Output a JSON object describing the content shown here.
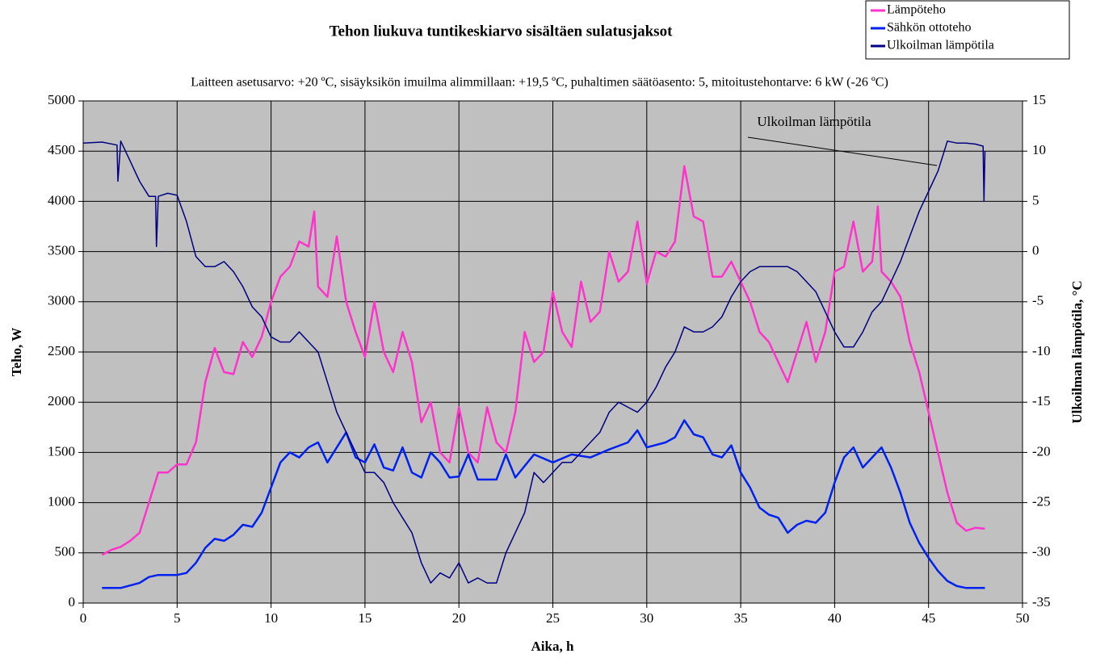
{
  "chart_data": {
    "type": "line",
    "title": "Tehon liukuva  tuntikeskiarvo  sisältäen sulatusjaksot",
    "subtitle": "Laitteen asetusarvo: +20 ºC, sisäyksikön imuilma  alimmillaan:  +19,5 ºC, puhaltimen säätöasento: 5, mitoitustehontarve:  6 kW (-26 ºC)",
    "x_label": "Aika, h",
    "y_label": "Teho, W",
    "y2_label": "Ulkoilman lämpötila, °C",
    "annotation": "Ulkoilman lämpötila",
    "xlim": [
      0,
      50
    ],
    "xticks": [
      0,
      5,
      10,
      15,
      20,
      25,
      30,
      35,
      40,
      45,
      50
    ],
    "ylim": [
      0,
      5000
    ],
    "yticks": [
      0,
      500,
      1000,
      1500,
      2000,
      2500,
      3000,
      3500,
      4000,
      4500,
      5000
    ],
    "y2lim": [
      -35,
      15
    ],
    "y2ticks": [
      -35,
      -30,
      -25,
      -20,
      -15,
      -10,
      -5,
      0,
      5,
      10,
      15
    ],
    "grid": true,
    "legend": "top-right",
    "series": [
      {
        "name": "Lämpöteho",
        "color": "#ff33cc",
        "x": [
          1,
          1.5,
          2,
          2.5,
          3,
          3.5,
          4,
          4.5,
          5,
          5.5,
          6,
          6.5,
          7,
          7.5,
          8,
          8.5,
          9,
          9.5,
          10,
          10.5,
          11,
          11.5,
          12,
          12.3,
          12.5,
          13,
          13.5,
          14,
          14.5,
          15,
          15.5,
          16,
          16.5,
          17,
          17.5,
          18,
          18.5,
          19,
          19.5,
          20,
          20.5,
          21,
          21.5,
          22,
          22.5,
          23,
          23.5,
          24,
          24.5,
          25,
          25.5,
          26,
          26.5,
          27,
          27.5,
          28,
          28.5,
          29,
          29.5,
          30,
          30.5,
          31,
          31.5,
          32,
          32.5,
          33,
          33.5,
          34,
          34.5,
          35,
          35.5,
          36,
          36.5,
          37,
          37.5,
          38,
          38.5,
          39,
          39.5,
          40,
          40.5,
          41,
          41.5,
          42,
          42.3,
          42.5,
          43,
          43.5,
          44,
          44.5,
          45,
          45.5,
          46,
          46.5,
          47,
          47.5,
          48
        ],
        "values": [
          480,
          530,
          560,
          620,
          700,
          1000,
          1300,
          1300,
          1380,
          1380,
          1600,
          2200,
          2540,
          2300,
          2280,
          2600,
          2450,
          2650,
          3000,
          3250,
          3350,
          3600,
          3550,
          3900,
          3150,
          3050,
          3650,
          3000,
          2700,
          2450,
          3000,
          2500,
          2300,
          2700,
          2400,
          1800,
          2000,
          1500,
          1400,
          1950,
          1500,
          1400,
          1950,
          1600,
          1500,
          1900,
          2700,
          2400,
          2500,
          3100,
          2700,
          2550,
          3200,
          2800,
          2900,
          3500,
          3200,
          3300,
          3800,
          3180,
          3500,
          3450,
          3600,
          4350,
          3850,
          3800,
          3250,
          3250,
          3400,
          3200,
          3000,
          2700,
          2600,
          2400,
          2200,
          2500,
          2800,
          2400,
          2700,
          3300,
          3350,
          3800,
          3300,
          3400,
          3950,
          3300,
          3200,
          3050,
          2600,
          2300,
          1900,
          1500,
          1100,
          800,
          720,
          750,
          740
        ]
      },
      {
        "name": "Sähkön ottoteho",
        "color": "#0022ee",
        "x": [
          1,
          2,
          3,
          3.5,
          4,
          4.5,
          5,
          5.5,
          6,
          6.5,
          7,
          7.5,
          8,
          8.5,
          9,
          9.5,
          10,
          10.5,
          11,
          11.5,
          12,
          12.5,
          13,
          13.5,
          14,
          14.5,
          15,
          15.5,
          16,
          16.5,
          17,
          17.5,
          18,
          18.5,
          19,
          19.5,
          20,
          20.5,
          21,
          22,
          22.5,
          23,
          24,
          25,
          26,
          27,
          28,
          29,
          29.5,
          30,
          31,
          31.5,
          32,
          32.5,
          33,
          33.5,
          34,
          34.5,
          35,
          35.5,
          36,
          36.5,
          37,
          37.5,
          38,
          38.5,
          39,
          39.5,
          40,
          40.5,
          41,
          41.5,
          42,
          42.5,
          43,
          43.5,
          44,
          44.5,
          45,
          45.5,
          46,
          46.5,
          47,
          48
        ],
        "values": [
          150,
          150,
          200,
          260,
          280,
          280,
          280,
          300,
          400,
          550,
          640,
          620,
          680,
          780,
          760,
          900,
          1150,
          1400,
          1500,
          1450,
          1550,
          1600,
          1400,
          1550,
          1700,
          1450,
          1400,
          1580,
          1350,
          1320,
          1550,
          1300,
          1250,
          1500,
          1400,
          1250,
          1260,
          1480,
          1230,
          1230,
          1480,
          1250,
          1480,
          1400,
          1480,
          1450,
          1530,
          1600,
          1720,
          1550,
          1600,
          1650,
          1820,
          1680,
          1650,
          1480,
          1450,
          1570,
          1300,
          1150,
          950,
          880,
          850,
          700,
          780,
          820,
          800,
          900,
          1200,
          1450,
          1550,
          1350,
          1450,
          1550,
          1350,
          1100,
          800,
          600,
          450,
          320,
          220,
          170,
          150,
          150
        ]
      },
      {
        "name": "Ulkoilman lämpötila",
        "color": "#000080",
        "axis": "y2",
        "x": [
          0,
          1,
          1.8,
          1.85,
          2,
          2.5,
          3,
          3.5,
          3.85,
          3.9,
          4,
          4.5,
          5,
          5.5,
          6,
          6.5,
          7,
          7.5,
          8,
          8.5,
          9,
          9.5,
          10,
          10.5,
          11,
          11.5,
          12,
          12.5,
          13,
          13.5,
          14,
          14.5,
          15,
          15.5,
          16,
          16.5,
          17,
          17.5,
          18,
          18.5,
          19,
          19.5,
          20,
          20.5,
          21,
          21.5,
          22,
          22.5,
          23,
          23.5,
          24,
          24.5,
          25,
          25.5,
          26,
          26.5,
          27,
          27.5,
          28,
          28.5,
          29,
          29.5,
          30,
          30.5,
          31,
          31.5,
          32,
          32.5,
          33,
          33.5,
          34,
          34.5,
          35,
          35.5,
          36,
          36.5,
          37,
          37.5,
          38,
          38.5,
          39,
          39.5,
          40,
          40.5,
          41,
          41.5,
          42,
          42.5,
          43,
          43.5,
          44,
          44.5,
          45,
          45.5,
          46,
          46.5,
          47,
          47.5,
          47.9,
          47.95,
          48
        ],
        "values": [
          10.8,
          10.9,
          10.6,
          7,
          11,
          9,
          7,
          5.5,
          5.5,
          0.5,
          5.5,
          5.8,
          5.6,
          3,
          -0.5,
          -1.5,
          -1.5,
          -1,
          -2,
          -3.5,
          -5.5,
          -6.5,
          -8.5,
          -9,
          -9,
          -8,
          -9,
          -10,
          -13,
          -16,
          -18,
          -20,
          -22,
          -22,
          -23,
          -25,
          -26.5,
          -28,
          -31,
          -33,
          -32,
          -32.5,
          -31,
          -33,
          -32.5,
          -33,
          -33,
          -30,
          -28,
          -26,
          -22,
          -23,
          -22,
          -21,
          -21,
          -20,
          -19,
          -18,
          -16,
          -15,
          -15.5,
          -16,
          -15,
          -13.5,
          -11.5,
          -10,
          -7.5,
          -8,
          -8,
          -7.5,
          -6.5,
          -4.5,
          -3,
          -2,
          -1.5,
          -1.5,
          -1.5,
          -1.5,
          -2,
          -3,
          -4,
          -6,
          -8,
          -9.5,
          -9.5,
          -8,
          -6,
          -5,
          -3,
          -1,
          1.5,
          4,
          6,
          8,
          11,
          10.8,
          10.8,
          10.7,
          10.5,
          5,
          10
        ]
      }
    ]
  }
}
